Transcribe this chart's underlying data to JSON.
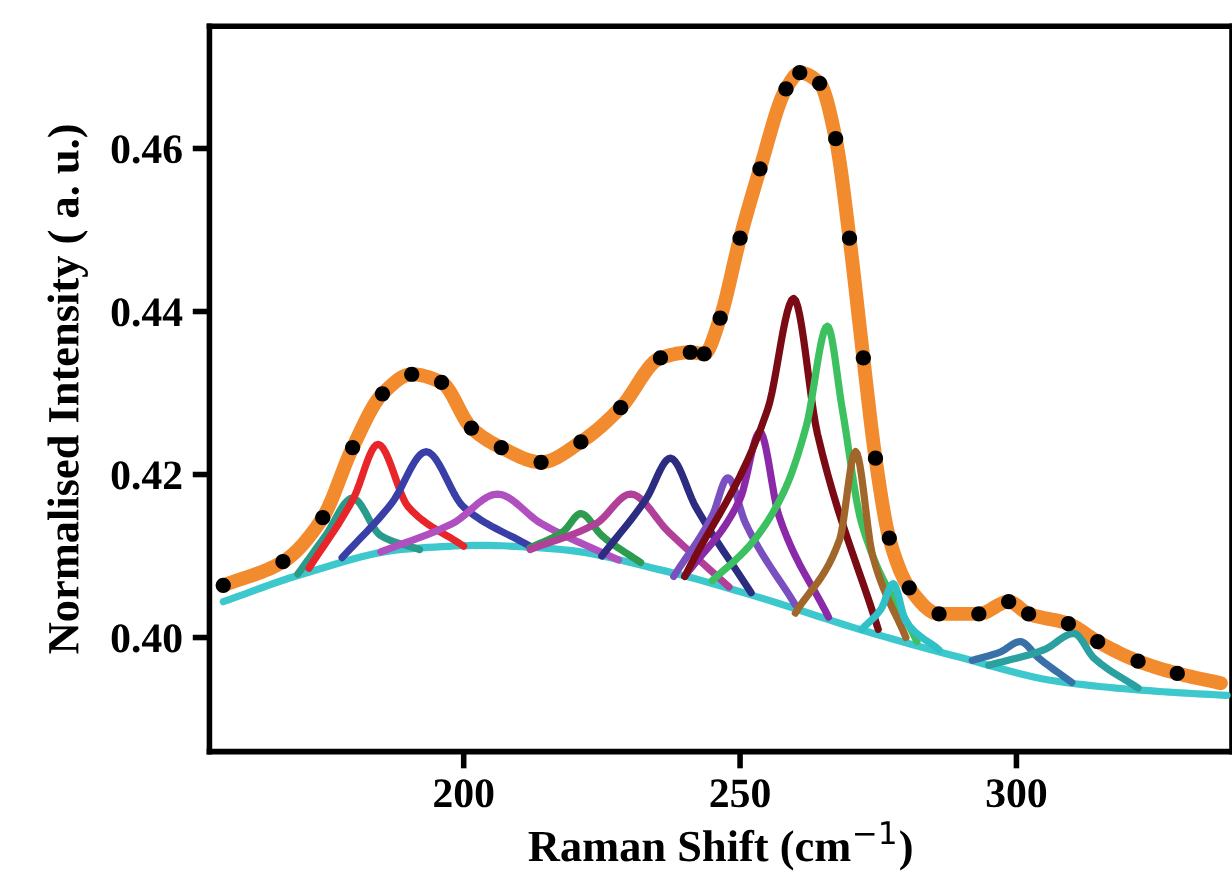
{
  "chart_data": {
    "type": "line",
    "xlabel": "Raman Shift (cm$^{−1}$)",
    "ylabel": "Normalised Intensity ( a. u.)",
    "xlim": [
      154,
      339
    ],
    "ylim": [
      0.386,
      0.475
    ],
    "xticks": [
      200,
      250,
      300
    ],
    "yticks": [
      {
        "value": 0.4,
        "label": "0.40"
      },
      {
        "value": 0.42,
        "label": "0.42"
      },
      {
        "value": 0.44,
        "label": "0.44"
      },
      {
        "value": 0.46,
        "label": "0.46"
      }
    ],
    "grid": false,
    "legend": false,
    "series": [
      {
        "color": "#f28a2e",
        "x": [
          156.5,
          167.3,
          174.5,
          179.9,
          185.3,
          190.6,
          196,
          201.4,
          206.8,
          214,
          221.2,
          228.4,
          235.6,
          241,
          243.5,
          246.4,
          250,
          253.6,
          258.3,
          260.8,
          264.4,
          267.3,
          269.8,
          272.3,
          274.5,
          277,
          280.6,
          286,
          293.2,
          298.6,
          302.2,
          309.4,
          314.7,
          322,
          329.1,
          337
        ],
        "values": [
          0.4064,
          0.4093,
          0.4147,
          0.4233,
          0.4299,
          0.4323,
          0.4313,
          0.4257,
          0.4233,
          0.4215,
          0.424,
          0.4282,
          0.4343,
          0.435,
          0.4348,
          0.4392,
          0.449,
          0.4575,
          0.4673,
          0.4693,
          0.468,
          0.4612,
          0.449,
          0.4343,
          0.422,
          0.4122,
          0.4061,
          0.4029,
          0.4029,
          0.4044,
          0.4029,
          0.4017,
          0.3995,
          0.3971,
          0.3956,
          0.3944
        ]
      },
      {
        "color": "#3cc8cc",
        "x": [
          156.5,
          170.9,
          188.8,
          203.2,
          217.6,
          235.6,
          253.6,
          271.6,
          289.6,
          307.6,
          325.5,
          338.1
        ],
        "values": [
          0.4044,
          0.4078,
          0.4108,
          0.4113,
          0.4108,
          0.4083,
          0.4049,
          0.401,
          0.3976,
          0.3946,
          0.3934,
          0.3929
        ]
      },
      {
        "type": "line",
        "color": "#2a9a8a",
        "x": [
          170,
          175,
          179.9,
          185,
          192
        ],
        "values": [
          0.4078,
          0.4125,
          0.4171,
          0.4125,
          0.4108
        ]
      },
      {
        "type": "line",
        "color": "#e8262a",
        "x": [
          172,
          180,
          184.5,
          190,
          200
        ],
        "values": [
          0.4085,
          0.417,
          0.4237,
          0.416,
          0.4112
        ]
      },
      {
        "type": "line",
        "color": "#3a3fa8",
        "x": [
          178,
          187,
          193.2,
          200,
          212
        ],
        "values": [
          0.4098,
          0.4165,
          0.4228,
          0.416,
          0.4112
        ]
      },
      {
        "type": "line",
        "color": "#b04fc0",
        "x": [
          185,
          198,
          206.1,
          214,
          228
        ],
        "values": [
          0.4105,
          0.414,
          0.4176,
          0.414,
          0.4095
        ]
      },
      {
        "type": "line",
        "color": "#2e9c4e",
        "x": [
          212,
          218,
          221.2,
          225,
          232
        ],
        "values": [
          0.411,
          0.413,
          0.4152,
          0.4125,
          0.4092
        ]
      },
      {
        "type": "line",
        "color": "#b0409a",
        "x": [
          212,
          224,
          230.2,
          237,
          248
        ],
        "values": [
          0.4108,
          0.414,
          0.4176,
          0.413,
          0.4062
        ]
      },
      {
        "type": "line",
        "color": "#2c2c80",
        "x": [
          225,
          233,
          237.4,
          242,
          252
        ],
        "values": [
          0.41,
          0.417,
          0.422,
          0.416,
          0.4055
        ]
      },
      {
        "type": "line",
        "color": "#7a4fc0",
        "x": [
          238,
          245,
          247.8,
          251,
          260
        ],
        "values": [
          0.4075,
          0.415,
          0.4196,
          0.414,
          0.404
        ]
      },
      {
        "type": "line",
        "color": "#8a2aa8",
        "x": [
          240,
          250,
          253.6,
          257,
          266
        ],
        "values": [
          0.4075,
          0.417,
          0.4252,
          0.415,
          0.4025
        ]
      },
      {
        "type": "line",
        "color": "#7a0a14",
        "x": [
          240,
          255,
          259.7,
          264,
          275
        ],
        "values": [
          0.4075,
          0.428,
          0.4416,
          0.425,
          0.401
        ]
      },
      {
        "type": "line",
        "color": "#3cc060",
        "x": [
          245,
          252,
          258,
          262,
          265.8,
          268.5,
          272,
          282
        ],
        "values": [
          0.407,
          0.4115,
          0.418,
          0.426,
          0.4382,
          0.428,
          0.414,
          0.3995
        ]
      },
      {
        "type": "line",
        "color": "#a0662a",
        "x": [
          260,
          268,
          270.9,
          274,
          280
        ],
        "values": [
          0.403,
          0.412,
          0.4228,
          0.41,
          0.4
        ]
      },
      {
        "type": "line",
        "color": "#30c0c8",
        "x": [
          272,
          275.5,
          277.7,
          280,
          286
        ],
        "values": [
          0.401,
          0.4035,
          0.4066,
          0.402,
          0.3985
        ]
      },
      {
        "type": "line",
        "color": "#3a70a8",
        "x": [
          292,
          297,
          300.7,
          304,
          310
        ],
        "values": [
          0.3972,
          0.3982,
          0.3995,
          0.3975,
          0.3945
        ]
      },
      {
        "type": "line",
        "color": "#2aa0a0",
        "x": [
          295,
          305,
          310.4,
          314,
          322
        ],
        "values": [
          0.3966,
          0.3985,
          0.4005,
          0.3975,
          0.3938
        ]
      },
      {
        "type": "scatter",
        "color": "#000000",
        "marker": "circle",
        "x": [
          156.5,
          167.3,
          174.5,
          179.9,
          185.3,
          190.6,
          196,
          201.4,
          206.8,
          214,
          221.2,
          228.4,
          235.6,
          241,
          243.5,
          246.4,
          250,
          253.6,
          258.3,
          260.8,
          264.4,
          267.3,
          269.8,
          272.3,
          274.5,
          277,
          280.6,
          286,
          293.2,
          298.6,
          302.2,
          309.4,
          314.7,
          322,
          329.1
        ],
        "values": [
          0.4064,
          0.4093,
          0.4147,
          0.4233,
          0.4299,
          0.4323,
          0.4313,
          0.4257,
          0.4233,
          0.4215,
          0.424,
          0.4282,
          0.4343,
          0.435,
          0.4348,
          0.4392,
          0.449,
          0.4575,
          0.4673,
          0.4693,
          0.468,
          0.4612,
          0.449,
          0.4343,
          0.422,
          0.4122,
          0.4061,
          0.4029,
          0.4029,
          0.4044,
          0.4029,
          0.4017,
          0.3995,
          0.3971,
          0.3956
        ]
      }
    ]
  }
}
